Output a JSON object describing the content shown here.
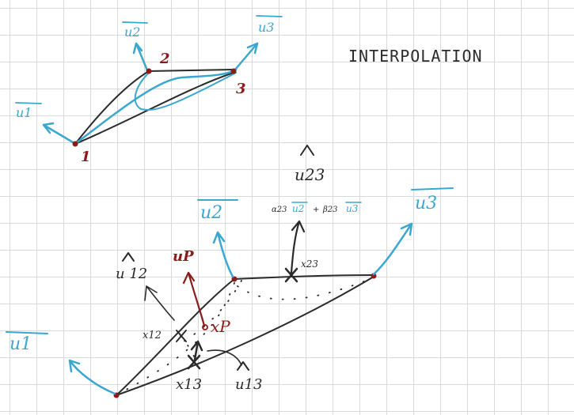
{
  "title": "INTERPOLATION",
  "top_figure": {
    "vertex_labels": [
      "1",
      "2",
      "3"
    ],
    "normal_labels": [
      "u1",
      "u2",
      "u3"
    ]
  },
  "bottom_figure": {
    "normal_labels": [
      "u1",
      "u2",
      "u3"
    ],
    "point_labels": {
      "x12": "x12",
      "x23": "x23",
      "x13": "x13",
      "xp": "xP"
    },
    "hat_labels": {
      "u12": "u 12",
      "u23": "u23",
      "u13": "u13"
    },
    "up_label": "uP",
    "formula": {
      "alpha": "α23",
      "u2": "u2",
      "plus": "+",
      "beta": "β23",
      "u3": "u3"
    }
  },
  "colors": {
    "ink": "#2b2b2b",
    "blue": "#3aa7cf",
    "red": "#8b1a1a",
    "grid": "#d9d9d9"
  }
}
